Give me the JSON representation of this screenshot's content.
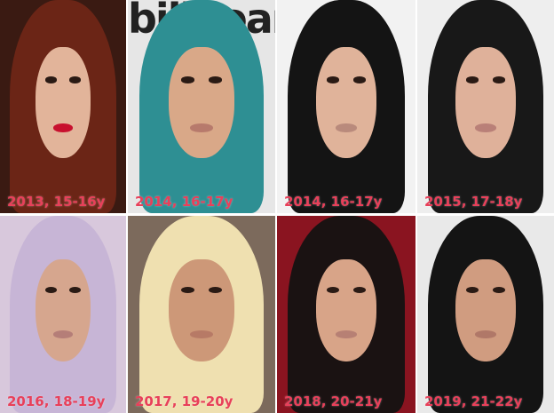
{
  "logo_text": "billboard",
  "photos": [
    {
      "label": "2013, 15-16y",
      "bg": "#3a1a12",
      "hair": "#6b2516",
      "skin": "#e2b49a",
      "lips": "#c8102e"
    },
    {
      "label": "2014, 16-17y",
      "bg": "#e6e6e6",
      "hair": "#2e8f93",
      "skin": "#d9a888",
      "lips": "#b77a6c"
    },
    {
      "label": "2014, 16-17y",
      "bg": "#f2f2f2",
      "hair": "#141414",
      "skin": "#e0b39a",
      "lips": "#b98a7c"
    },
    {
      "label": "2015, 17-18y",
      "bg": "#eeeeee",
      "hair": "#181818",
      "skin": "#dfb19a",
      "lips": "#b98078"
    },
    {
      "label": "2016, 18-19y",
      "bg": "#d8c8dc",
      "hair": "#c7b5d6",
      "skin": "#d6a68e",
      "lips": "#b57e78"
    },
    {
      "label": "2017, 19-20y",
      "bg": "#7c6a5c",
      "hair": "#efe0b0",
      "skin": "#cd9878",
      "lips": "#b77a66"
    },
    {
      "label": "2018, 20-21y",
      "bg": "#8a1420",
      "hair": "#1a1212",
      "skin": "#d8a488",
      "lips": "#b78074"
    },
    {
      "label": "2019, 21-22y",
      "bg": "#e9e9e9",
      "hair": "#141414",
      "skin": "#d09c80",
      "lips": "#b07868"
    }
  ]
}
